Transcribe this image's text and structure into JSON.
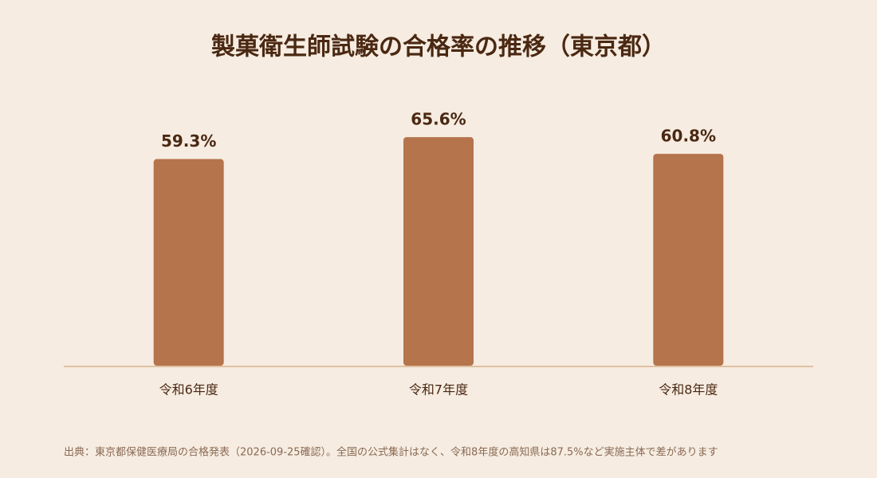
{
  "chart_data": {
    "type": "bar",
    "title": "製菓衛生師試験の合格率の推移（東京都）",
    "categories": [
      "令和6年度",
      "令和7年度",
      "令和8年度"
    ],
    "values": [
      59.3,
      65.6,
      60.8
    ],
    "value_labels": [
      "59.3%",
      "65.6%",
      "60.8%"
    ],
    "color": "#b5744b",
    "ylim": [
      0,
      75
    ],
    "source": "出典：東京都保健医療局の合格発表（2026-09-25確認）。全国の公式集計はなく、令和8年度の高知県は87.5%など実施主体で差があります"
  }
}
